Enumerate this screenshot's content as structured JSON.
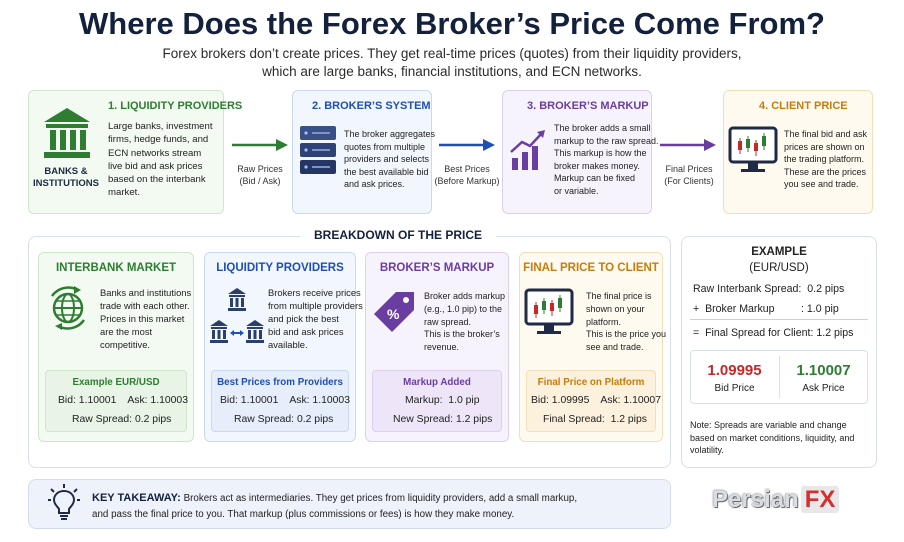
{
  "title": "Where Does the Forex Broker’s Price Come From?",
  "subtitle_line1": "Forex brokers don’t create prices. They get real-time prices (quotes) from their liquidity providers,",
  "subtitle_line2": "which are large banks, financial institutions, and ECN networks.",
  "steps": [
    {
      "heading": "1. LIQUIDITY PROVIDERS",
      "icon_caption": "BANKS &\nINSTITUTIONS",
      "lines": [
        "Large banks, investment",
        "firms, hedge funds, and",
        "ECN networks stream",
        "live bid and ask prices",
        "based on the interbank",
        "market."
      ],
      "color": "#2e7d32"
    },
    {
      "heading": "2. BROKER’S SYSTEM",
      "lines": [
        "The broker aggregates",
        "quotes from multiple",
        "providers and selects",
        "the best available bid",
        "and ask prices."
      ],
      "color": "#1f4fb5"
    },
    {
      "heading": "3. BROKER’S MARKUP",
      "lines": [
        "The broker adds a small",
        "markup to the raw spread.",
        "This markup is how the",
        "broker makes money.",
        "Markup can be fixed",
        "or variable."
      ],
      "color": "#6a3ea1"
    },
    {
      "heading": "4. CLIENT PRICE",
      "lines": [
        "The final bid and ask",
        "prices are shown on",
        "the trading platform.",
        "These are the prices",
        "you see and trade."
      ],
      "color": "#c77c0e"
    }
  ],
  "arrows": [
    {
      "line1": "Raw Prices",
      "line2": "(Bid / Ask)",
      "color": "#2e7d32"
    },
    {
      "line1": "Best Prices",
      "line2": "(Before Markup)",
      "color": "#1f4fb5"
    },
    {
      "line1": "Final Prices",
      "line2": "(For Clients)",
      "color": "#6a3ea1"
    }
  ],
  "breakdown_title": "BREAKDOWN OF THE PRICE",
  "cards": [
    {
      "heading": "INTERBANK MARKET",
      "lines": [
        "Banks and institutions",
        "trade with each other.",
        "Prices in this market",
        "are the most",
        "competitive."
      ],
      "box_title": "Example EUR/USD",
      "box_line1": "Bid: 1.10001    Ask: 1.10003",
      "box_line2": "Raw Spread: 0.2 pips",
      "color": "#2e7d32",
      "bg": "#f3faf2",
      "border": "#cfe6cc",
      "box_bg": "#e8f4e6"
    },
    {
      "heading": "LIQUIDITY PROVIDERS",
      "lines": [
        "Brokers receive prices",
        "from multiple providers",
        "and pick the best",
        "bid and ask prices",
        "available."
      ],
      "box_title": "Best Prices from Providers",
      "box_line1": "Bid: 1.10001    Ask: 1.10003",
      "box_line2": "Raw Spread: 0.2 pips",
      "color": "#1f4fb5",
      "bg": "#f2f6fd",
      "border": "#cbd8f1",
      "box_bg": "#e6eefb"
    },
    {
      "heading": "BROKER’S MARKUP",
      "lines": [
        "Broker adds markup",
        "(e.g., 1.0 pip) to the",
        "raw spread.",
        "This is the broker’s",
        "revenue."
      ],
      "box_title": "Markup Added",
      "box_line1": "Markup:  1.0 pip",
      "box_line2": "New Spread: 1.2 pips",
      "color": "#6a3ea1",
      "bg": "#f7f3fc",
      "border": "#ddd0ee",
      "box_bg": "#eee6f8"
    },
    {
      "heading": "FINAL PRICE TO CLIENT",
      "lines": [
        "The final price is",
        "shown on your",
        "platform.",
        "This is the price you",
        "see and trade."
      ],
      "box_title": "Final Price on Platform",
      "box_line1": "Bid: 1.09995    Ask: 1.10007",
      "box_line2": "Final Spread:  1.2 pips",
      "color": "#c77c0e",
      "bg": "#fffaf0",
      "border": "#f1dfb8",
      "box_bg": "#fcf1dc"
    }
  ],
  "example": {
    "heading": "EXAMPLE",
    "pair": "(EUR/USD)",
    "raw_spread": "Raw Interbank Spread:  0.2 pips",
    "markup": "+  Broker Markup         : 1.0 pip",
    "final_spread": "=  Final Spread for Client: 1.2 pips",
    "bid_value": "1.09995",
    "bid_label": "Bid Price",
    "ask_value": "1.10007",
    "ask_label": "Ask Price",
    "bid_color": "#c62828",
    "ask_color": "#2e7d32",
    "note": "Note: Spreads are variable and change based on market conditions, liquidity, and volatility."
  },
  "takeaway": {
    "heading": "KEY TAKEAWAY:",
    "text_line1": "Brokers act as intermediaries. They get prices from liquidity providers, add a small markup,",
    "text_line2": "and pass the final price to you. That markup (plus commissions or fees) is how they make money."
  },
  "logo": {
    "part1": "Persian",
    "part2": "FX"
  },
  "icons": [
    "bank-icon",
    "server-icon",
    "growth-chart-icon",
    "trading-monitor-icon",
    "globe-exchange-icon",
    "providers-network-icon",
    "price-tag-icon",
    "candlestick-chart-icon",
    "lightbulb-icon"
  ]
}
